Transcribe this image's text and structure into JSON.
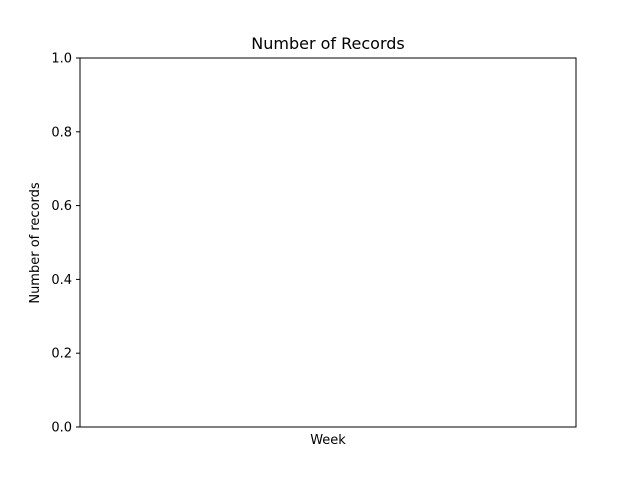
{
  "chart_data": {
    "type": "line",
    "title": "Number of Records",
    "xlabel": "Week",
    "ylabel": "Number of records",
    "ylim": [
      0,
      1
    ],
    "y_ticks": [
      0.0,
      0.2,
      0.4,
      0.6,
      0.8,
      1.0
    ],
    "x_ticks": [],
    "grid": false,
    "series": []
  }
}
